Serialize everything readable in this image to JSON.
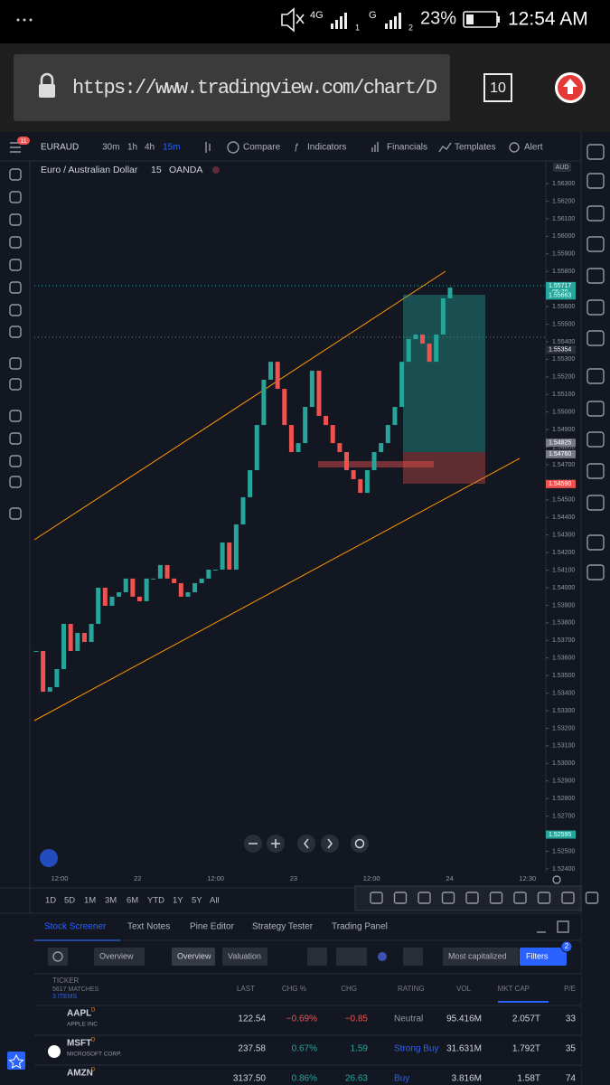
{
  "status_bar": {
    "network": "4G",
    "sim1": "1",
    "signal_g": "G",
    "sim2": "2",
    "battery": "23%",
    "time": "12:54 AM"
  },
  "browser": {
    "url": "https://www.tradingview.com/chart/D",
    "tabs": "10"
  },
  "toolbar": {
    "badge": "11",
    "symbol": "EURAUD",
    "intervals": [
      "30m",
      "1h",
      "4h",
      "15m"
    ],
    "compare": "Compare",
    "indicators": "Indicators",
    "financials": "Financials",
    "templates": "Templates",
    "alert": "Alert"
  },
  "chart_data": {
    "type": "candlestick",
    "title": "Euro / Australian Dollar",
    "interval": "15",
    "exchange": "OANDA",
    "currency": "AUD",
    "closes": [
      1.5364,
      1.53408,
      1.53434,
      1.53537,
      1.53794,
      1.5364,
      1.53743,
      1.53691,
      1.53794,
      1.54,
      1.53897,
      1.53949,
      1.53974,
      1.54052,
      1.53949,
      1.53923,
      1.54052,
      1.54052,
      1.54129,
      1.54052,
      1.54026,
      1.53949,
      1.53974,
      1.54026,
      1.54052,
      1.54103,
      1.54103,
      1.54257,
      1.54103,
      1.5436,
      1.54515,
      1.54669,
      1.54926,
      1.55184,
      1.55286,
      1.55132,
      1.54926,
      1.54772,
      1.54823,
      1.55029,
      1.55235,
      1.54978,
      1.54926,
      1.54823,
      1.54772,
      1.54669,
      1.54618,
      1.5454,
      1.54669,
      1.54772,
      1.54823,
      1.54926,
      1.55029,
      1.55286,
      1.55415,
      1.55441,
      1.55389,
      1.55286,
      1.55441,
      1.55647,
      1.55708
    ],
    "ylim": [
      1.52379,
      1.56429
    ],
    "yticks": [
      {
        "value": 1.563,
        "label": "1.56300"
      },
      {
        "value": 1.562,
        "label": "1.56200"
      },
      {
        "value": 1.561,
        "label": "1.56100"
      },
      {
        "value": 1.56,
        "label": "1.56000"
      },
      {
        "value": 1.559,
        "label": "1.55900"
      },
      {
        "value": 1.558,
        "label": "1.55800"
      },
      {
        "value": 1.557,
        "label": "1.55700"
      },
      {
        "value": 1.556,
        "label": "1.55600"
      },
      {
        "value": 1.555,
        "label": "1.55500"
      },
      {
        "value": 1.554,
        "label": "1.55400"
      },
      {
        "value": 1.553,
        "label": "1.55300"
      },
      {
        "value": 1.552,
        "label": "1.55200"
      },
      {
        "value": 1.551,
        "label": "1.55100"
      },
      {
        "value": 1.55,
        "label": "1.55000"
      },
      {
        "value": 1.549,
        "label": "1.54900"
      },
      {
        "value": 1.548,
        "label": "1.54800"
      },
      {
        "value": 1.547,
        "label": "1.54700"
      },
      {
        "value": 1.546,
        "label": "1.54600"
      },
      {
        "value": 1.545,
        "label": "1.54500"
      },
      {
        "value": 1.544,
        "label": "1.54400"
      },
      {
        "value": 1.543,
        "label": "1.54300"
      },
      {
        "value": 1.542,
        "label": "1.54200"
      },
      {
        "value": 1.541,
        "label": "1.54100"
      },
      {
        "value": 1.54,
        "label": "1.54000"
      },
      {
        "value": 1.539,
        "label": "1.53900"
      },
      {
        "value": 1.538,
        "label": "1.53800"
      },
      {
        "value": 1.537,
        "label": "1.53700"
      },
      {
        "value": 1.536,
        "label": "1.53600"
      },
      {
        "value": 1.535,
        "label": "1.53500"
      },
      {
        "value": 1.534,
        "label": "1.53400"
      },
      {
        "value": 1.533,
        "label": "1.53300"
      },
      {
        "value": 1.532,
        "label": "1.53200"
      },
      {
        "value": 1.531,
        "label": "1.53100"
      },
      {
        "value": 1.53,
        "label": "1.53000"
      },
      {
        "value": 1.529,
        "label": "1.52900"
      },
      {
        "value": 1.528,
        "label": "1.52800"
      },
      {
        "value": 1.527,
        "label": "1.52700"
      },
      {
        "value": 1.526,
        "label": "1.52600"
      },
      {
        "value": 1.525,
        "label": "1.52500"
      },
      {
        "value": 1.524,
        "label": "1.52400"
      }
    ],
    "price_labels": [
      {
        "value": 1.55717,
        "label": "1.55717",
        "sub": "05:39",
        "color": "#26a69a"
      },
      {
        "value": 1.55663,
        "label": "1.55663",
        "color": "#26a69a"
      },
      {
        "value": 1.55354,
        "label": "1.55354",
        "color": "#2a2e39"
      },
      {
        "value": 1.54825,
        "label": "1.54825",
        "color": "#787b86"
      },
      {
        "value": 1.5476,
        "label": "1.54760",
        "color": "#787b86"
      },
      {
        "value": 1.5459,
        "label": "1.54590",
        "color": "#ef5350"
      },
      {
        "value": 1.52595,
        "label": "1.52595",
        "color": "#26a69a"
      }
    ],
    "xtick_labels": [
      "12:00",
      "22",
      "12:00",
      "23",
      "12:00",
      "24",
      "12:30"
    ]
  },
  "ranges": [
    "1D",
    "5D",
    "1M",
    "3M",
    "6M",
    "YTD",
    "1Y",
    "5Y",
    "All"
  ],
  "panel_tabs": [
    "Stock Screener",
    "Text Notes",
    "Pine Editor",
    "Strategy Tester",
    "Trading Panel"
  ],
  "screener": {
    "view": "Overview",
    "tab_overview": "Overview",
    "tab_valuation": "Valuation",
    "sort": "Most capitalized",
    "filters": "Filters",
    "filter_count": "2",
    "header": {
      "ticker": "TICKER",
      "matches": "5617 MATCHES",
      "items": "3 ITEMS",
      "columns": [
        "LAST",
        "CHG %",
        "CHG",
        "RATING",
        "VOL",
        "MKT CAP",
        "P/E"
      ]
    },
    "rows": [
      {
        "ticker": "AAPL",
        "flag": "D",
        "company": "APPLE INC",
        "cells": [
          "122.54",
          "−0.69%",
          "−0.85",
          "Neutral",
          "95.416M",
          "2.057T",
          "33"
        ]
      },
      {
        "ticker": "MSFT",
        "flag": "D",
        "company": "MICROSOFT CORP.",
        "cells": [
          "237.58",
          "0.67%",
          "1.59",
          "Strong Buy",
          "31.631M",
          "1.792T",
          "35"
        ]
      },
      {
        "ticker": "AMZN",
        "flag": "D",
        "company": "",
        "cells": [
          "3137.50",
          "0.86%",
          "26.63",
          "Buy",
          "3.816M",
          "1.58T",
          "74"
        ]
      }
    ]
  }
}
